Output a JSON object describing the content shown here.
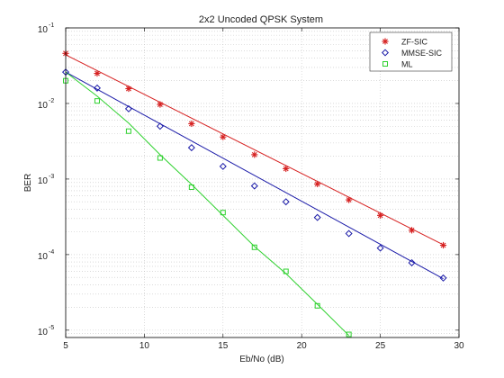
{
  "chart_data": {
    "type": "line",
    "title": "2x2 Uncoded QPSK System",
    "xlabel": "Eb/No (dB)",
    "ylabel": "BER",
    "xlim": [
      5,
      30
    ],
    "ylim": [
      8e-06,
      0.1
    ],
    "yscale": "log",
    "grid": true,
    "x_ticks": [
      5,
      10,
      15,
      20,
      25,
      30
    ],
    "y_ticks": [
      {
        "base": "10",
        "exp": "-1",
        "value": 0.1
      },
      {
        "base": "10",
        "exp": "-2",
        "value": 0.01
      },
      {
        "base": "10",
        "exp": "-3",
        "value": 0.001
      },
      {
        "base": "10",
        "exp": "-4",
        "value": 0.0001
      },
      {
        "base": "10",
        "exp": "-5",
        "value": 1e-05
      }
    ],
    "legend_position": "top-right",
    "series": [
      {
        "name": "ZF-SIC",
        "color": "#d62020",
        "marker": "asterisk",
        "x": [
          5,
          7,
          9,
          11,
          13,
          15,
          17,
          19,
          21,
          23,
          25,
          27,
          29
        ],
        "y": [
          0.046,
          0.025,
          0.0157,
          0.0097,
          0.0054,
          0.0036,
          0.0021,
          0.00137,
          0.00086,
          0.00053,
          0.00033,
          0.00021,
          0.000133
        ],
        "curve_x": [
          5,
          29
        ],
        "curve_y": [
          0.044,
          0.000135
        ]
      },
      {
        "name": "MMSE-SIC",
        "color": "#1a1aa8",
        "marker": "diamond",
        "x": [
          5,
          7,
          9,
          11,
          13,
          15,
          17,
          19,
          21,
          23,
          25,
          27,
          29
        ],
        "y": [
          0.026,
          0.016,
          0.0085,
          0.005,
          0.0026,
          0.00147,
          0.00081,
          0.0005,
          0.00031,
          0.00019,
          0.000122,
          7.8e-05,
          4.9e-05
        ],
        "curve_x": [
          5,
          29
        ],
        "curve_y": [
          0.026,
          4.8e-05
        ]
      },
      {
        "name": "ML",
        "color": "#2ed12e",
        "marker": "square",
        "x": [
          5,
          7,
          9,
          11,
          13,
          15,
          17,
          19,
          21,
          23
        ],
        "y": [
          0.02,
          0.0108,
          0.0043,
          0.0019,
          0.00078,
          0.00036,
          0.000125,
          6e-05,
          2.1e-05,
          8.8e-06
        ],
        "curve_x": [
          5,
          7,
          9,
          11,
          13,
          15,
          17,
          19,
          21,
          23
        ],
        "curve_y": [
          0.026,
          0.0125,
          0.0055,
          0.0021,
          0.00085,
          0.00033,
          0.000128,
          5.6e-05,
          2.2e-05,
          8.5e-06
        ]
      }
    ]
  }
}
